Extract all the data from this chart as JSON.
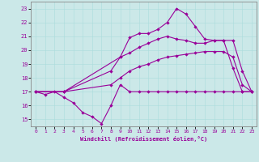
{
  "xlabel": "Windchill (Refroidissement éolien,°C)",
  "background_color": "#cbe8e8",
  "line_color": "#990099",
  "xlim": [
    -0.5,
    23.5
  ],
  "ylim": [
    14.5,
    23.5
  ],
  "yticks": [
    15,
    16,
    17,
    18,
    19,
    20,
    21,
    22,
    23
  ],
  "xticks": [
    0,
    1,
    2,
    3,
    4,
    5,
    6,
    7,
    8,
    9,
    10,
    11,
    12,
    13,
    14,
    15,
    16,
    17,
    18,
    19,
    20,
    21,
    22,
    23
  ],
  "lines": [
    {
      "x": [
        0,
        1,
        2,
        3,
        4,
        5,
        6,
        7,
        8,
        9,
        10,
        11,
        12,
        13,
        14,
        15,
        16,
        17,
        18,
        19,
        20,
        21,
        22,
        23
      ],
      "y": [
        17,
        16.8,
        17,
        16.6,
        16.2,
        15.5,
        15.2,
        14.7,
        16.0,
        17.5,
        17.0,
        17.0,
        17.0,
        17.0,
        17.0,
        17.0,
        17.0,
        17.0,
        17.0,
        17.0,
        17.0,
        17.0,
        17.0,
        17.0
      ]
    },
    {
      "x": [
        0,
        3,
        8,
        9,
        10,
        11,
        12,
        13,
        14,
        15,
        16,
        17,
        18,
        19,
        20,
        21,
        22,
        23
      ],
      "y": [
        17,
        17,
        17.5,
        18.0,
        18.5,
        18.8,
        19.0,
        19.3,
        19.5,
        19.6,
        19.7,
        19.8,
        19.9,
        19.9,
        19.9,
        19.5,
        17.5,
        17.0
      ]
    },
    {
      "x": [
        0,
        3,
        8,
        9,
        10,
        11,
        12,
        13,
        14,
        15,
        16,
        17,
        18,
        19,
        20,
        21,
        22,
        23
      ],
      "y": [
        17,
        17,
        18.5,
        19.5,
        19.8,
        20.2,
        20.5,
        20.8,
        21.0,
        20.8,
        20.7,
        20.5,
        20.5,
        20.7,
        20.7,
        20.7,
        18.5,
        17.0
      ]
    },
    {
      "x": [
        0,
        3,
        9,
        10,
        11,
        12,
        13,
        14,
        15,
        16,
        17,
        18,
        19,
        20,
        21,
        22,
        23
      ],
      "y": [
        17,
        17,
        19.5,
        20.9,
        21.2,
        21.2,
        21.5,
        22.0,
        23.0,
        22.6,
        21.7,
        20.8,
        20.7,
        20.7,
        18.7,
        17.0,
        17.0
      ]
    }
  ]
}
